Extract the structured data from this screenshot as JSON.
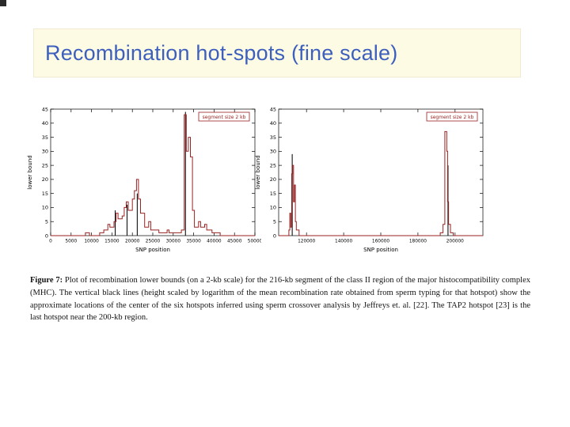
{
  "slide": {
    "title": "Recombination hot-spots (fine scale)",
    "title_color": "#3d5fbe",
    "band_color": "#fdfbe3"
  },
  "caption": {
    "label": "Figure 7:",
    "text": " Plot of recombination lower bounds (on a 2-kb scale) for the 216-kb segment of the class II region of the major histocompatibility complex (MHC). The vertical black lines (height scaled by logarithm of the mean recombination rate obtained from sperm typing for that hotspot) show the approximate locations of the center of the six hotspots inferred using sperm crossover analysis by Jeffreys et. al. [22]. The TAP2 hotspot [23] is the last hotspot near the 200-kb region."
  },
  "chart_data": [
    {
      "type": "line",
      "title": "",
      "legend": "segment size 2 kb",
      "xlabel": "SNP position",
      "ylabel": "lower bound",
      "xlim": [
        0,
        50000
      ],
      "ylim": [
        0,
        45
      ],
      "xticks": [
        0,
        5000,
        10000,
        15000,
        20000,
        25000,
        30000,
        35000,
        40000,
        45000,
        50000
      ],
      "yticks": [
        0,
        5,
        10,
        15,
        20,
        25,
        30,
        35,
        40,
        45
      ],
      "line_color": "#992222",
      "hotspot_color": "#111111",
      "grid": false,
      "legend_position": "top-right",
      "points": [
        [
          0,
          0
        ],
        [
          8500,
          0
        ],
        [
          8500,
          1
        ],
        [
          9500,
          1
        ],
        [
          9500,
          0
        ],
        [
          12000,
          0
        ],
        [
          12000,
          1
        ],
        [
          13000,
          1
        ],
        [
          13000,
          2
        ],
        [
          14000,
          2
        ],
        [
          14000,
          4
        ],
        [
          14500,
          4
        ],
        [
          14500,
          3
        ],
        [
          15500,
          3
        ],
        [
          15500,
          5
        ],
        [
          16000,
          5
        ],
        [
          16000,
          8
        ],
        [
          16500,
          8
        ],
        [
          16500,
          6
        ],
        [
          17500,
          6
        ],
        [
          17500,
          7
        ],
        [
          18000,
          7
        ],
        [
          18000,
          10
        ],
        [
          18500,
          10
        ],
        [
          18500,
          12
        ],
        [
          19000,
          12
        ],
        [
          19000,
          9
        ],
        [
          20000,
          9
        ],
        [
          20000,
          13
        ],
        [
          20500,
          13
        ],
        [
          20500,
          16
        ],
        [
          21000,
          16
        ],
        [
          21000,
          20
        ],
        [
          21500,
          20
        ],
        [
          21500,
          13
        ],
        [
          22000,
          13
        ],
        [
          22000,
          8
        ],
        [
          23000,
          8
        ],
        [
          23000,
          3
        ],
        [
          24000,
          3
        ],
        [
          24000,
          5
        ],
        [
          24500,
          5
        ],
        [
          24500,
          2
        ],
        [
          26500,
          2
        ],
        [
          26500,
          1
        ],
        [
          28500,
          1
        ],
        [
          28500,
          2
        ],
        [
          29000,
          2
        ],
        [
          29000,
          1
        ],
        [
          32000,
          1
        ],
        [
          32000,
          2
        ],
        [
          32700,
          2
        ],
        [
          32700,
          43
        ],
        [
          33200,
          43
        ],
        [
          33200,
          30
        ],
        [
          33700,
          30
        ],
        [
          33700,
          35
        ],
        [
          34200,
          35
        ],
        [
          34200,
          28
        ],
        [
          34700,
          28
        ],
        [
          34700,
          9
        ],
        [
          35200,
          9
        ],
        [
          35200,
          3
        ],
        [
          36200,
          3
        ],
        [
          36200,
          5
        ],
        [
          36700,
          5
        ],
        [
          36700,
          3
        ],
        [
          37700,
          3
        ],
        [
          37700,
          4
        ],
        [
          38200,
          4
        ],
        [
          38200,
          2
        ],
        [
          39500,
          2
        ],
        [
          39500,
          1
        ],
        [
          41500,
          1
        ],
        [
          41500,
          0
        ],
        [
          50000,
          0
        ]
      ],
      "hotspots": [
        {
          "x": 15800,
          "height": 9
        },
        {
          "x": 18700,
          "height": 11
        },
        {
          "x": 21200,
          "height": 15
        },
        {
          "x": 33000,
          "height": 44
        }
      ]
    },
    {
      "type": "line",
      "title": "",
      "legend": "segment size 2 kb",
      "xlabel": "SNP position",
      "ylabel": "lower bound",
      "xlim": [
        105000,
        215000
      ],
      "ylim": [
        0,
        45
      ],
      "xticks": [
        120000,
        140000,
        160000,
        180000,
        200000
      ],
      "yticks": [
        0,
        5,
        10,
        15,
        20,
        25,
        30,
        35,
        40,
        45
      ],
      "line_color": "#992222",
      "hotspot_color": "#111111",
      "grid": false,
      "legend_position": "top-right",
      "points": [
        [
          105000,
          0
        ],
        [
          110500,
          0
        ],
        [
          110500,
          2
        ],
        [
          111000,
          2
        ],
        [
          111000,
          8
        ],
        [
          111500,
          8
        ],
        [
          111500,
          3
        ],
        [
          112000,
          3
        ],
        [
          112000,
          22
        ],
        [
          112500,
          22
        ],
        [
          112500,
          25
        ],
        [
          113000,
          25
        ],
        [
          113000,
          12
        ],
        [
          113500,
          12
        ],
        [
          113500,
          18
        ],
        [
          114000,
          18
        ],
        [
          114000,
          5
        ],
        [
          114500,
          5
        ],
        [
          114500,
          2
        ],
        [
          116000,
          2
        ],
        [
          116000,
          0
        ],
        [
          192000,
          0
        ],
        [
          192000,
          1
        ],
        [
          193500,
          1
        ],
        [
          193500,
          4
        ],
        [
          194500,
          4
        ],
        [
          194500,
          37
        ],
        [
          195500,
          37
        ],
        [
          195500,
          30
        ],
        [
          196000,
          30
        ],
        [
          196000,
          12
        ],
        [
          196500,
          12
        ],
        [
          196500,
          4
        ],
        [
          197500,
          4
        ],
        [
          197500,
          1
        ],
        [
          199000,
          1
        ],
        [
          199000,
          0
        ],
        [
          215000,
          0
        ]
      ],
      "hotspots": [
        {
          "x": 112300,
          "height": 29
        },
        {
          "x": 196200,
          "height": 25
        }
      ]
    }
  ]
}
